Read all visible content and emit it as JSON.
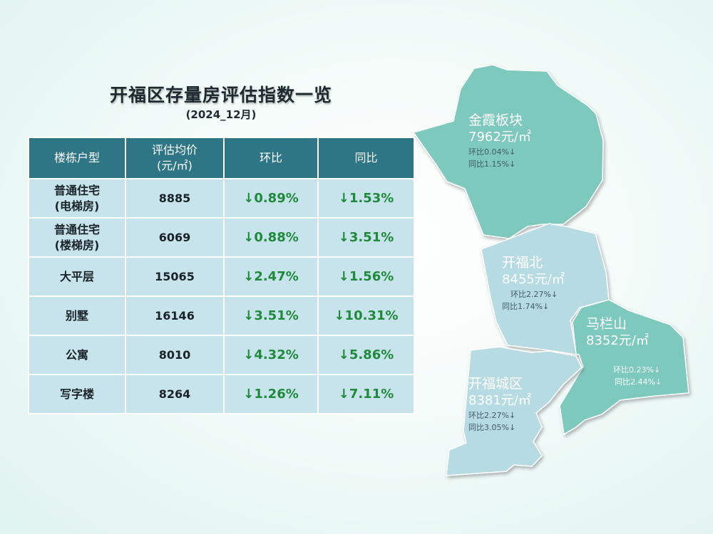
{
  "title": "开福区存量房评估指数一览",
  "subtitle": "(2024_12月)",
  "table": {
    "headers": [
      "楼栋户型",
      "评估均价\n(元/㎡)",
      "环比",
      "同比"
    ],
    "rows": [
      {
        "type": "普通住宅\n(电梯房)",
        "price": "8885",
        "mom": "↓0.89%",
        "yoy": "↓1.53%"
      },
      {
        "type": "普通住宅\n(楼梯房)",
        "price": "6069",
        "mom": "↓0.88%",
        "yoy": "↓3.51%"
      },
      {
        "type": "大平层",
        "price": "15065",
        "mom": "↓2.47%",
        "yoy": "↓1.56%"
      },
      {
        "type": "别墅",
        "price": "16146",
        "mom": "↓3.51%",
        "yoy": "↓10.31%"
      },
      {
        "type": "公寓",
        "price": "8010",
        "mom": "↓4.32%",
        "yoy": "↓5.86%"
      },
      {
        "type": "写字楼",
        "price": "8264",
        "mom": "↓1.26%",
        "yoy": "↓7.11%"
      }
    ]
  },
  "map": {
    "regions": [
      {
        "name": "金霞板块",
        "price": "7962元/㎡",
        "mom": "环比0.04%↓",
        "yoy": "同比1.15%↓",
        "color": "#7ec9bd"
      },
      {
        "name": "开福北",
        "price": "8455元/㎡",
        "mom": "环比2.27%↓",
        "yoy": "同比1.74%↓",
        "color": "#b7dbe3"
      },
      {
        "name": "马栏山",
        "price": "8352元/㎡",
        "mom": "环比0.23%↓",
        "yoy": "同比2.44%↓",
        "color": "#7ec9bd"
      },
      {
        "name": "开福城区",
        "price": "8381元/㎡",
        "mom": "环比2.27%↓",
        "yoy": "同比3.05%↓",
        "color": "#b7dbe3"
      }
    ]
  }
}
